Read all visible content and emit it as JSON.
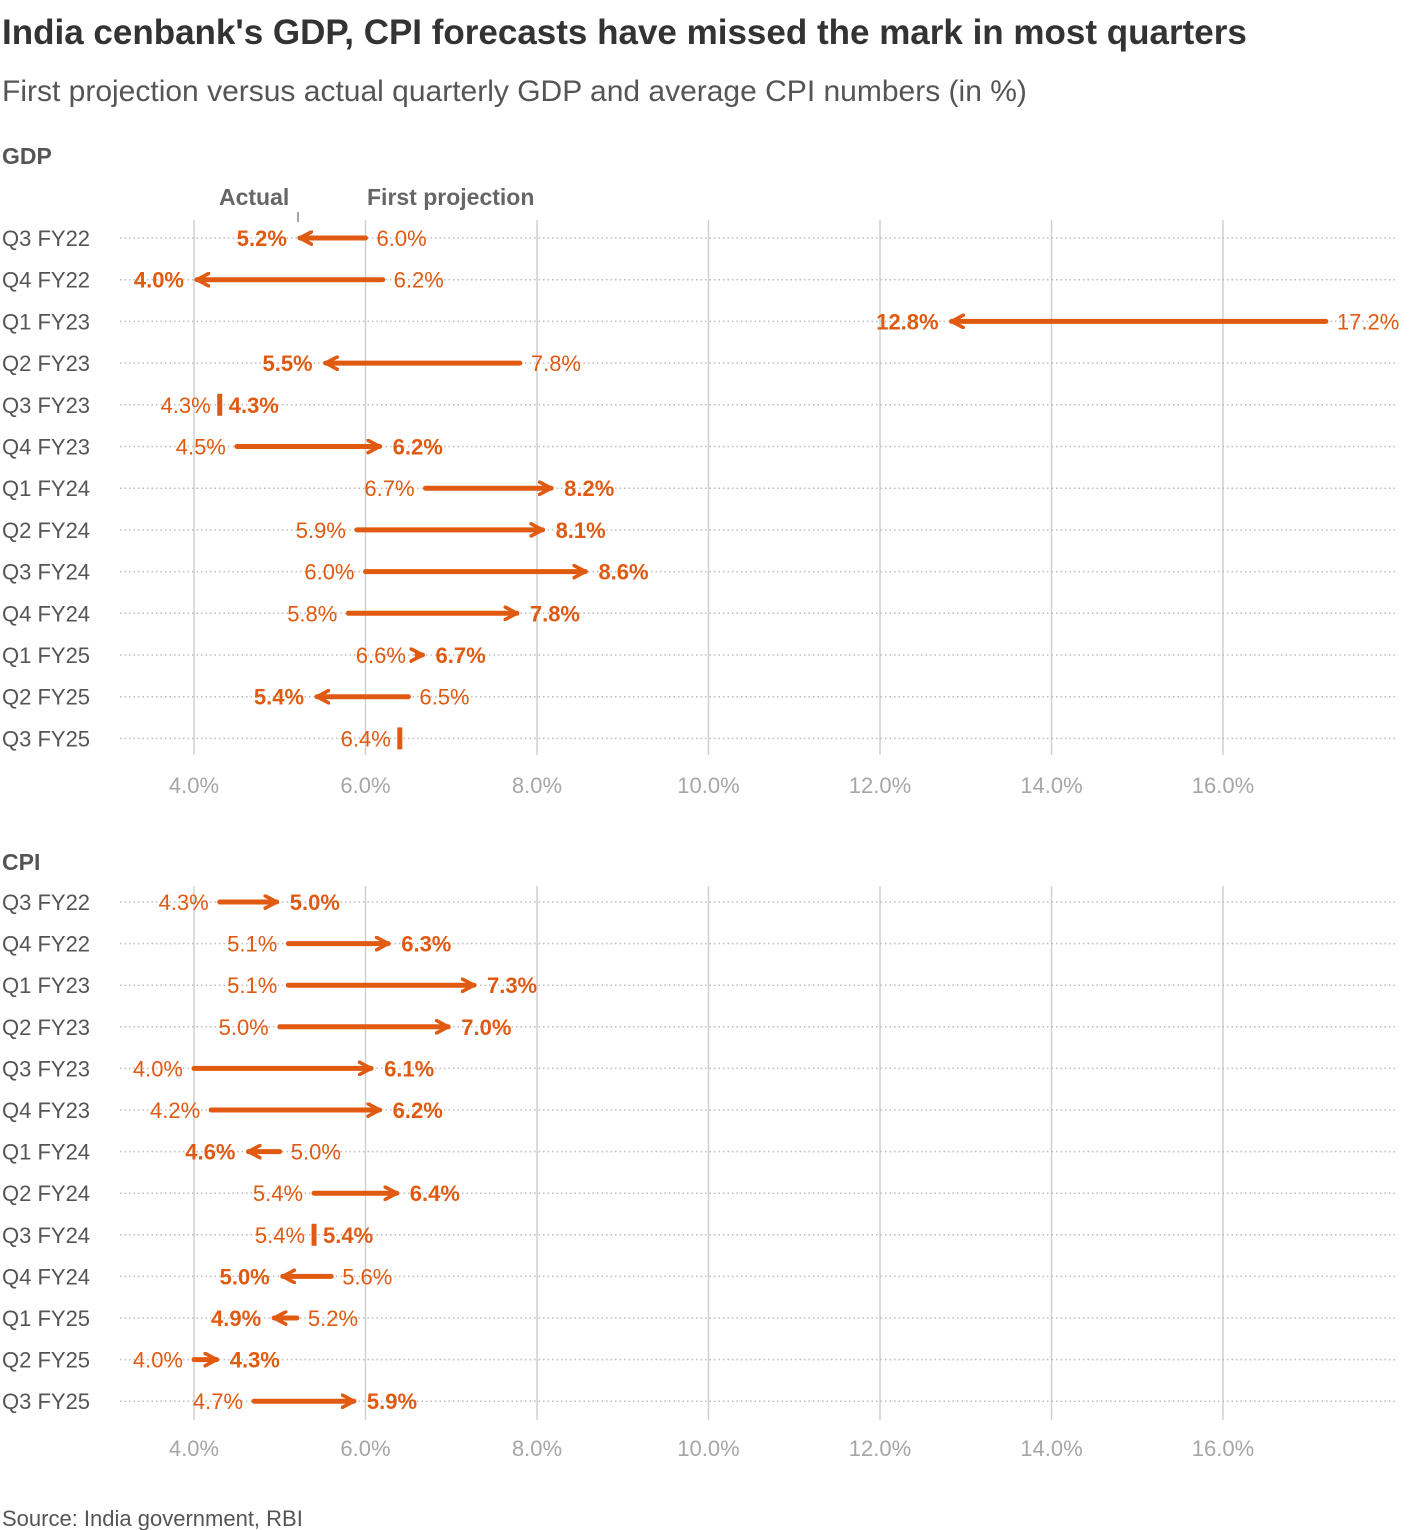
{
  "title": "India cenbank's GDP, CPI forecasts have missed the mark in most quarters",
  "subtitle": "First projection versus actual quarterly GDP and average CPI numbers (in %)",
  "legend": {
    "actual": "Actual",
    "projection": "First projection"
  },
  "source": "Source: India government, RBI",
  "colors": {
    "accent": "#e05a12",
    "grid": "#d0d0d0",
    "dots": "#bdbdbd",
    "text": "#555555"
  },
  "chart_data": [
    {
      "type": "dumbbell-arrow",
      "section": "GDP",
      "xlim": [
        3.0,
        17.5
      ],
      "xticks": [
        4,
        6,
        8,
        10,
        12,
        14,
        16
      ],
      "xtick_labels": [
        "4.0%",
        "6.0%",
        "8.0%",
        "10.0%",
        "12.0%",
        "14.0%",
        "16.0%"
      ],
      "rows": [
        {
          "label": "Q3 FY22",
          "projection": 6.0,
          "actual": 5.2,
          "projection_label": "6.0%",
          "actual_label": "5.2%"
        },
        {
          "label": "Q4 FY22",
          "projection": 6.2,
          "actual": 4.0,
          "projection_label": "6.2%",
          "actual_label": "4.0%"
        },
        {
          "label": "Q1 FY23",
          "projection": 17.2,
          "actual": 12.8,
          "projection_label": "17.2%",
          "actual_label": "12.8%"
        },
        {
          "label": "Q2 FY23",
          "projection": 7.8,
          "actual": 5.5,
          "projection_label": "7.8%",
          "actual_label": "5.5%"
        },
        {
          "label": "Q3 FY23",
          "projection": 4.3,
          "actual": 4.3,
          "projection_label": "4.3%",
          "actual_label": "4.3%"
        },
        {
          "label": "Q4 FY23",
          "projection": 4.5,
          "actual": 6.2,
          "projection_label": "4.5%",
          "actual_label": "6.2%"
        },
        {
          "label": "Q1 FY24",
          "projection": 6.7,
          "actual": 8.2,
          "projection_label": "6.7%",
          "actual_label": "8.2%"
        },
        {
          "label": "Q2 FY24",
          "projection": 5.9,
          "actual": 8.1,
          "projection_label": "5.9%",
          "actual_label": "8.1%"
        },
        {
          "label": "Q3 FY24",
          "projection": 6.0,
          "actual": 8.6,
          "projection_label": "6.0%",
          "actual_label": "8.6%"
        },
        {
          "label": "Q4 FY24",
          "projection": 5.8,
          "actual": 7.8,
          "projection_label": "5.8%",
          "actual_label": "7.8%"
        },
        {
          "label": "Q1 FY25",
          "projection": 6.6,
          "actual": 6.7,
          "projection_label": "6.6%",
          "actual_label": "6.7%"
        },
        {
          "label": "Q2 FY25",
          "projection": 6.5,
          "actual": 5.4,
          "projection_label": "6.5%",
          "actual_label": "5.4%"
        },
        {
          "label": "Q3 FY25",
          "projection": 6.4,
          "actual": null,
          "projection_label": "6.4%",
          "actual_label": ""
        }
      ]
    },
    {
      "type": "dumbbell-arrow",
      "section": "CPI",
      "xlim": [
        3.0,
        17.5
      ],
      "xticks": [
        4,
        6,
        8,
        10,
        12,
        14,
        16
      ],
      "xtick_labels": [
        "4.0%",
        "6.0%",
        "8.0%",
        "10.0%",
        "12.0%",
        "14.0%",
        "16.0%"
      ],
      "rows": [
        {
          "label": "Q3 FY22",
          "projection": 4.3,
          "actual": 5.0,
          "projection_label": "4.3%",
          "actual_label": "5.0%"
        },
        {
          "label": "Q4 FY22",
          "projection": 5.1,
          "actual": 6.3,
          "projection_label": "5.1%",
          "actual_label": "6.3%"
        },
        {
          "label": "Q1 FY23",
          "projection": 5.1,
          "actual": 7.3,
          "projection_label": "5.1%",
          "actual_label": "7.3%"
        },
        {
          "label": "Q2 FY23",
          "projection": 5.0,
          "actual": 7.0,
          "projection_label": "5.0%",
          "actual_label": "7.0%"
        },
        {
          "label": "Q3 FY23",
          "projection": 4.0,
          "actual": 6.1,
          "projection_label": "4.0%",
          "actual_label": "6.1%"
        },
        {
          "label": "Q4 FY23",
          "projection": 4.2,
          "actual": 6.2,
          "projection_label": "4.2%",
          "actual_label": "6.2%"
        },
        {
          "label": "Q1 FY24",
          "projection": 5.0,
          "actual": 4.6,
          "projection_label": "5.0%",
          "actual_label": "4.6%"
        },
        {
          "label": "Q2 FY24",
          "projection": 5.4,
          "actual": 6.4,
          "projection_label": "5.4%",
          "actual_label": "6.4%"
        },
        {
          "label": "Q3 FY24",
          "projection": 5.4,
          "actual": 5.4,
          "projection_label": "5.4%",
          "actual_label": "5.4%"
        },
        {
          "label": "Q4 FY24",
          "projection": 5.6,
          "actual": 5.0,
          "projection_label": "5.6%",
          "actual_label": "5.0%"
        },
        {
          "label": "Q1 FY25",
          "projection": 5.2,
          "actual": 4.9,
          "projection_label": "5.2%",
          "actual_label": "4.9%"
        },
        {
          "label": "Q2 FY25",
          "projection": 4.0,
          "actual": 4.3,
          "projection_label": "4.0%",
          "actual_label": "4.3%"
        },
        {
          "label": "Q3 FY25",
          "projection": 4.7,
          "actual": 5.9,
          "projection_label": "4.7%",
          "actual_label": "5.9%"
        }
      ]
    }
  ]
}
